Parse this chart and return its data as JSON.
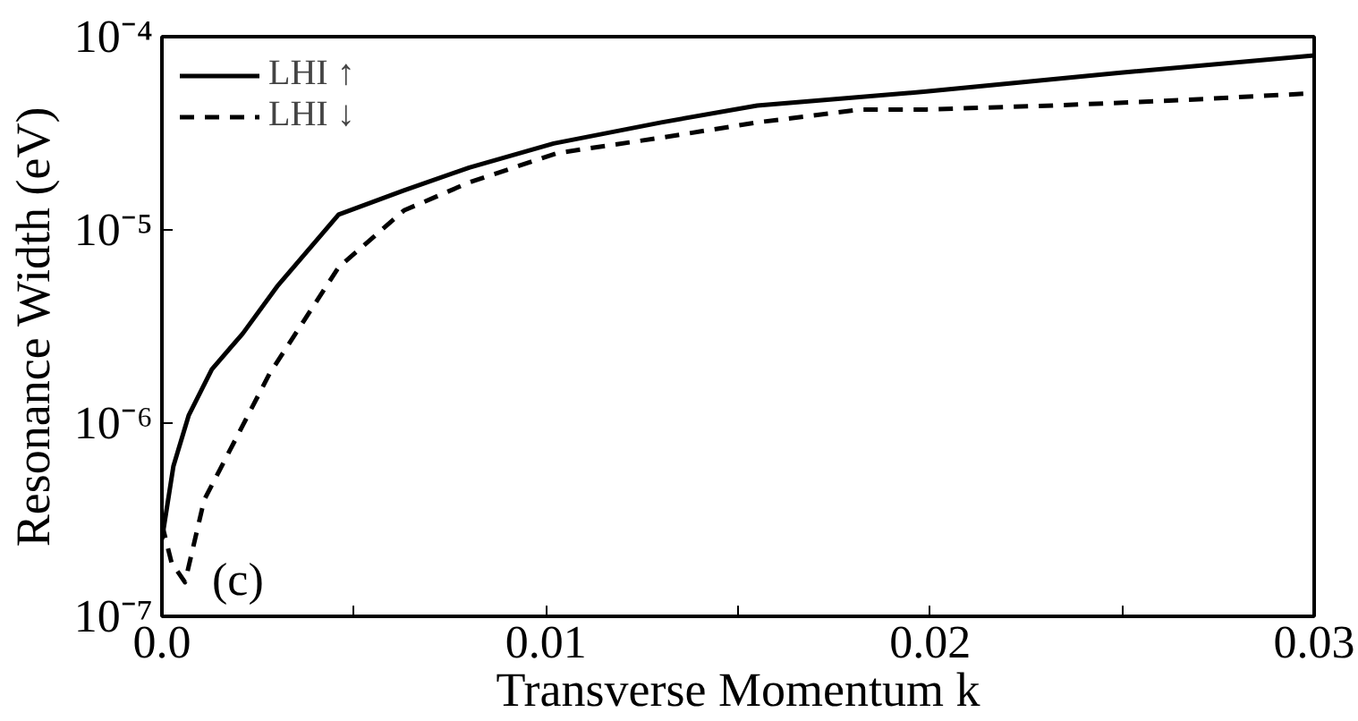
{
  "chart_data": {
    "type": "line",
    "xlabel": "Transverse Momentum k",
    "ylabel": "Resonance Width (eV)",
    "log": "y",
    "xlim": [
      0,
      0.03
    ],
    "ylim": [
      1e-07,
      0.0001
    ],
    "xticks": [
      {
        "value": 0,
        "label": "0.0"
      },
      {
        "value": 0.005,
        "label": null
      },
      0.01,
      {
        "value": 0.015,
        "label": null
      },
      0.02,
      {
        "value": 0.025,
        "label": null
      },
      0.03
    ],
    "yticks": [
      {
        "value": 1e-07,
        "label": "10⁻⁷"
      },
      {
        "value": 1e-06,
        "label": "10⁻⁶"
      },
      {
        "value": 1e-05,
        "label": "10⁻⁵"
      },
      {
        "value": 0.0001,
        "label": "10⁻⁴"
      }
    ],
    "grid": false,
    "legend": "top left",
    "annotations": [
      "(c)"
    ],
    "series": [
      {
        "name": "LHI ↑",
        "color": "#000000",
        "line_style": "solid",
        "x": [
          0,
          0.0003,
          0.0007,
          0.0013,
          0.0021,
          0.003,
          0.0046,
          0.0063,
          0.008,
          0.0102,
          0.013,
          0.0155,
          0.0199,
          0.0249,
          0.03
        ],
        "values": [
          2.5e-07,
          6e-07,
          1.1e-06,
          1.9e-06,
          2.9e-06,
          5.1e-06,
          1.2e-05,
          1.6e-05,
          2.1e-05,
          2.8e-05,
          3.6e-05,
          4.4e-05,
          5.2e-05,
          6.5e-05,
          8e-05
        ]
      },
      {
        "name": "LHI ↓",
        "color": "#000000",
        "line_style": "dashed",
        "x": [
          0,
          0.00025,
          0.0006,
          0.0011,
          0.0028,
          0.0046,
          0.0063,
          0.008,
          0.0103,
          0.013,
          0.0155,
          0.0182,
          0.0199,
          0.0232,
          0.0266,
          0.03
        ],
        "values": [
          3e-07,
          1.9e-07,
          1.5e-07,
          4e-07,
          1.8e-06,
          6.4e-06,
          1.26e-05,
          1.76e-05,
          2.5e-05,
          3e-05,
          3.6e-05,
          4.2e-05,
          4.2e-05,
          4.4e-05,
          4.7e-05,
          5.1e-05
        ]
      }
    ]
  }
}
